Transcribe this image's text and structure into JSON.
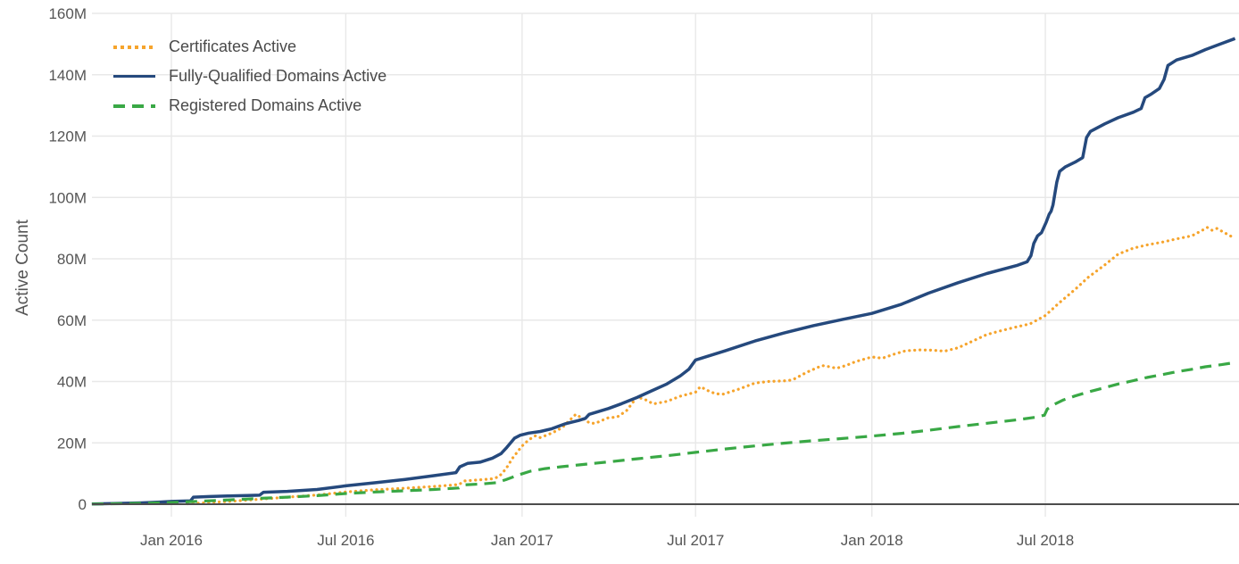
{
  "chart_data": {
    "type": "line",
    "title": "",
    "ylabel": "Active Count",
    "grid": true,
    "legend_position": "top-left",
    "x_range": [
      "2015-10-10",
      "2019-01-16"
    ],
    "y_axis": {
      "min": 0,
      "max": 160,
      "tick_step": 20,
      "tick_values": [
        0,
        20,
        40,
        60,
        80,
        100,
        120,
        140,
        160
      ],
      "tick_labels": [
        "0",
        "20M",
        "40M",
        "60M",
        "80M",
        "100M",
        "120M",
        "140M",
        "160M"
      ]
    },
    "x_axis": {
      "ticks": [
        {
          "date": "2016-01-01",
          "label": "Jan 2016"
        },
        {
          "date": "2016-07-01",
          "label": "Jul 2016"
        },
        {
          "date": "2017-01-01",
          "label": "Jan 2017"
        },
        {
          "date": "2017-07-01",
          "label": "Jul 2017"
        },
        {
          "date": "2018-01-01",
          "label": "Jan 2018"
        },
        {
          "date": "2018-07-01",
          "label": "Jul 2018"
        }
      ]
    },
    "series": [
      {
        "name": "Certificates Active",
        "color": "#f6a42c",
        "dash": "dotted",
        "points": [
          [
            "2016-01-18",
            0.15
          ],
          [
            "2016-02-01",
            0.4
          ],
          [
            "2016-03-01",
            0.9
          ],
          [
            "2016-04-01",
            1.6
          ],
          [
            "2016-05-01",
            2.3
          ],
          [
            "2016-06-01",
            3.0
          ],
          [
            "2016-07-01",
            4.0
          ],
          [
            "2016-08-01",
            4.7
          ],
          [
            "2016-09-01",
            5.2
          ],
          [
            "2016-10-01",
            5.8
          ],
          [
            "2016-10-27",
            6.4
          ],
          [
            "2016-11-02",
            7.6
          ],
          [
            "2016-11-20",
            8.0
          ],
          [
            "2016-12-01",
            8.3
          ],
          [
            "2016-12-08",
            9.0
          ],
          [
            "2016-12-15",
            11.5
          ],
          [
            "2016-12-22",
            15.0
          ],
          [
            "2017-01-01",
            19.0
          ],
          [
            "2017-01-08",
            21.0
          ],
          [
            "2017-01-15",
            22.3
          ],
          [
            "2017-01-20",
            21.7
          ],
          [
            "2017-02-01",
            23.2
          ],
          [
            "2017-02-12",
            25.0
          ],
          [
            "2017-02-20",
            27.5
          ],
          [
            "2017-02-26",
            29.3
          ],
          [
            "2017-03-05",
            28.0
          ],
          [
            "2017-03-12",
            26.6
          ],
          [
            "2017-03-18",
            26.3
          ],
          [
            "2017-03-25",
            27.3
          ],
          [
            "2017-04-01",
            28.2
          ],
          [
            "2017-04-10",
            28.4
          ],
          [
            "2017-04-20",
            30.5
          ],
          [
            "2017-05-01",
            35.0
          ],
          [
            "2017-05-10",
            34.0
          ],
          [
            "2017-05-18",
            32.7
          ],
          [
            "2017-06-01",
            33.5
          ],
          [
            "2017-06-15",
            35.2
          ],
          [
            "2017-07-01",
            36.5
          ],
          [
            "2017-07-06",
            38.3
          ],
          [
            "2017-07-14",
            37.0
          ],
          [
            "2017-07-22",
            36.0
          ],
          [
            "2017-07-30",
            35.9
          ],
          [
            "2017-08-15",
            37.5
          ],
          [
            "2017-09-01",
            39.5
          ],
          [
            "2017-09-15",
            40.0
          ],
          [
            "2017-10-01",
            40.2
          ],
          [
            "2017-10-10",
            40.5
          ],
          [
            "2017-10-25",
            43.0
          ],
          [
            "2017-11-10",
            45.2
          ],
          [
            "2017-11-18",
            44.8
          ],
          [
            "2017-11-25",
            44.3
          ],
          [
            "2017-12-05",
            45.2
          ],
          [
            "2017-12-15",
            46.5
          ],
          [
            "2018-01-01",
            48.0
          ],
          [
            "2018-01-12",
            47.6
          ],
          [
            "2018-01-25",
            49.0
          ],
          [
            "2018-02-05",
            50.0
          ],
          [
            "2018-02-20",
            50.3
          ],
          [
            "2018-03-05",
            50.2
          ],
          [
            "2018-03-18",
            49.9
          ],
          [
            "2018-04-01",
            51.0
          ],
          [
            "2018-04-15",
            53.0
          ],
          [
            "2018-05-01",
            55.3
          ],
          [
            "2018-05-15",
            56.5
          ],
          [
            "2018-06-01",
            57.8
          ],
          [
            "2018-06-15",
            58.8
          ],
          [
            "2018-07-01",
            61.5
          ],
          [
            "2018-07-15",
            65.5
          ],
          [
            "2018-08-01",
            70.0
          ],
          [
            "2018-08-15",
            74.0
          ],
          [
            "2018-09-01",
            78.0
          ],
          [
            "2018-09-15",
            81.5
          ],
          [
            "2018-10-01",
            83.5
          ],
          [
            "2018-10-15",
            84.5
          ],
          [
            "2018-11-01",
            85.5
          ],
          [
            "2018-11-15",
            86.5
          ],
          [
            "2018-12-01",
            87.5
          ],
          [
            "2018-12-10",
            89.0
          ],
          [
            "2018-12-17",
            90.2
          ],
          [
            "2018-12-22",
            89.3
          ],
          [
            "2018-12-27",
            89.9
          ],
          [
            "2019-01-04",
            88.5
          ],
          [
            "2019-01-10",
            87.5
          ],
          [
            "2019-01-15",
            86.5
          ]
        ]
      },
      {
        "name": "Fully-Qualified Domains Active",
        "color": "#25497d",
        "dash": "solid",
        "points": [
          [
            "2015-10-10",
            0.1
          ],
          [
            "2015-11-01",
            0.2
          ],
          [
            "2015-12-01",
            0.45
          ],
          [
            "2015-12-20",
            0.7
          ],
          [
            "2016-01-01",
            0.9
          ],
          [
            "2016-01-21",
            1.1
          ],
          [
            "2016-01-24",
            2.3
          ],
          [
            "2016-02-10",
            2.5
          ],
          [
            "2016-03-01",
            2.7
          ],
          [
            "2016-03-20",
            2.85
          ],
          [
            "2016-04-02",
            2.95
          ],
          [
            "2016-04-06",
            3.9
          ],
          [
            "2016-05-01",
            4.2
          ],
          [
            "2016-06-01",
            4.8
          ],
          [
            "2016-07-01",
            6.0
          ],
          [
            "2016-08-01",
            7.0
          ],
          [
            "2016-09-01",
            8.1
          ],
          [
            "2016-10-01",
            9.3
          ],
          [
            "2016-10-24",
            10.3
          ],
          [
            "2016-10-28",
            12.2
          ],
          [
            "2016-11-05",
            13.3
          ],
          [
            "2016-11-18",
            13.7
          ],
          [
            "2016-12-01",
            15.0
          ],
          [
            "2016-12-10",
            16.5
          ],
          [
            "2016-12-16",
            18.5
          ],
          [
            "2016-12-24",
            21.5
          ],
          [
            "2016-12-30",
            22.5
          ],
          [
            "2017-01-08",
            23.2
          ],
          [
            "2017-01-20",
            23.7
          ],
          [
            "2017-02-01",
            24.6
          ],
          [
            "2017-02-15",
            26.2
          ],
          [
            "2017-03-01",
            27.3
          ],
          [
            "2017-03-08",
            28.0
          ],
          [
            "2017-03-12",
            29.3
          ],
          [
            "2017-04-01",
            31.2
          ],
          [
            "2017-04-15",
            32.8
          ],
          [
            "2017-05-01",
            34.8
          ],
          [
            "2017-05-15",
            36.8
          ],
          [
            "2017-06-01",
            39.2
          ],
          [
            "2017-06-15",
            41.8
          ],
          [
            "2017-06-24",
            44.0
          ],
          [
            "2017-07-01",
            47.0
          ],
          [
            "2017-08-01",
            50.0
          ],
          [
            "2017-09-01",
            53.2
          ],
          [
            "2017-10-01",
            55.8
          ],
          [
            "2017-11-01",
            58.2
          ],
          [
            "2017-12-01",
            60.2
          ],
          [
            "2018-01-01",
            62.2
          ],
          [
            "2018-02-01",
            65.2
          ],
          [
            "2018-03-01",
            68.8
          ],
          [
            "2018-04-01",
            72.2
          ],
          [
            "2018-05-01",
            75.2
          ],
          [
            "2018-06-01",
            77.8
          ],
          [
            "2018-06-12",
            79.0
          ],
          [
            "2018-06-16",
            81.0
          ],
          [
            "2018-06-19",
            85.0
          ],
          [
            "2018-06-23",
            87.5
          ],
          [
            "2018-06-27",
            88.5
          ],
          [
            "2018-07-02",
            92.0
          ],
          [
            "2018-07-05",
            94.5
          ],
          [
            "2018-07-07",
            95.5
          ],
          [
            "2018-07-09",
            97.5
          ],
          [
            "2018-07-13",
            105.0
          ],
          [
            "2018-07-16",
            108.5
          ],
          [
            "2018-07-22",
            110.0
          ],
          [
            "2018-08-01",
            111.5
          ],
          [
            "2018-08-09",
            113.0
          ],
          [
            "2018-08-13",
            119.5
          ],
          [
            "2018-08-17",
            121.5
          ],
          [
            "2018-09-01",
            124.0
          ],
          [
            "2018-09-15",
            126.0
          ],
          [
            "2018-10-01",
            127.8
          ],
          [
            "2018-10-09",
            129.0
          ],
          [
            "2018-10-13",
            132.5
          ],
          [
            "2018-10-20",
            133.8
          ],
          [
            "2018-10-28",
            135.5
          ],
          [
            "2018-11-02",
            138.5
          ],
          [
            "2018-11-06",
            143.0
          ],
          [
            "2018-11-15",
            144.8
          ],
          [
            "2018-12-01",
            146.3
          ],
          [
            "2018-12-15",
            148.2
          ],
          [
            "2019-01-01",
            150.2
          ],
          [
            "2019-01-15",
            151.8
          ]
        ]
      },
      {
        "name": "Registered Domains Active",
        "color": "#39a845",
        "dash": "dashed",
        "points": [
          [
            "2015-10-10",
            0.05
          ],
          [
            "2015-11-01",
            0.15
          ],
          [
            "2015-12-01",
            0.3
          ],
          [
            "2016-01-01",
            0.55
          ],
          [
            "2016-02-01",
            1.0
          ],
          [
            "2016-03-01",
            1.4
          ],
          [
            "2016-04-01",
            1.9
          ],
          [
            "2016-05-01",
            2.3
          ],
          [
            "2016-06-01",
            2.8
          ],
          [
            "2016-07-01",
            3.5
          ],
          [
            "2016-08-01",
            4.0
          ],
          [
            "2016-09-01",
            4.4
          ],
          [
            "2016-10-01",
            4.8
          ],
          [
            "2016-10-27",
            5.3
          ],
          [
            "2016-11-02",
            6.3
          ],
          [
            "2016-11-20",
            6.6
          ],
          [
            "2016-12-05",
            7.0
          ],
          [
            "2016-12-15",
            8.0
          ],
          [
            "2016-12-28",
            9.5
          ],
          [
            "2017-01-10",
            10.8
          ],
          [
            "2017-01-25",
            11.6
          ],
          [
            "2017-02-10",
            12.2
          ],
          [
            "2017-03-01",
            12.8
          ],
          [
            "2017-04-01",
            13.8
          ],
          [
            "2017-05-01",
            14.8
          ],
          [
            "2017-06-01",
            15.8
          ],
          [
            "2017-07-01",
            16.9
          ],
          [
            "2017-08-01",
            18.0
          ],
          [
            "2017-09-01",
            19.0
          ],
          [
            "2017-10-01",
            19.9
          ],
          [
            "2017-11-01",
            20.7
          ],
          [
            "2017-12-01",
            21.4
          ],
          [
            "2018-01-01",
            22.2
          ],
          [
            "2018-02-01",
            23.1
          ],
          [
            "2018-03-01",
            24.1
          ],
          [
            "2018-04-01",
            25.3
          ],
          [
            "2018-05-01",
            26.4
          ],
          [
            "2018-06-01",
            27.5
          ],
          [
            "2018-06-20",
            28.3
          ],
          [
            "2018-06-30",
            29.0
          ],
          [
            "2018-07-03",
            31.0
          ],
          [
            "2018-07-10",
            32.5
          ],
          [
            "2018-07-20",
            34.0
          ],
          [
            "2018-08-01",
            35.3
          ],
          [
            "2018-08-15",
            36.6
          ],
          [
            "2018-09-01",
            38.0
          ],
          [
            "2018-09-15",
            39.2
          ],
          [
            "2018-10-01",
            40.3
          ],
          [
            "2018-10-15",
            41.3
          ],
          [
            "2018-11-01",
            42.3
          ],
          [
            "2018-11-15",
            43.2
          ],
          [
            "2018-12-01",
            44.0
          ],
          [
            "2018-12-15",
            44.8
          ],
          [
            "2019-01-01",
            45.5
          ],
          [
            "2019-01-15",
            46.2
          ]
        ]
      }
    ]
  }
}
